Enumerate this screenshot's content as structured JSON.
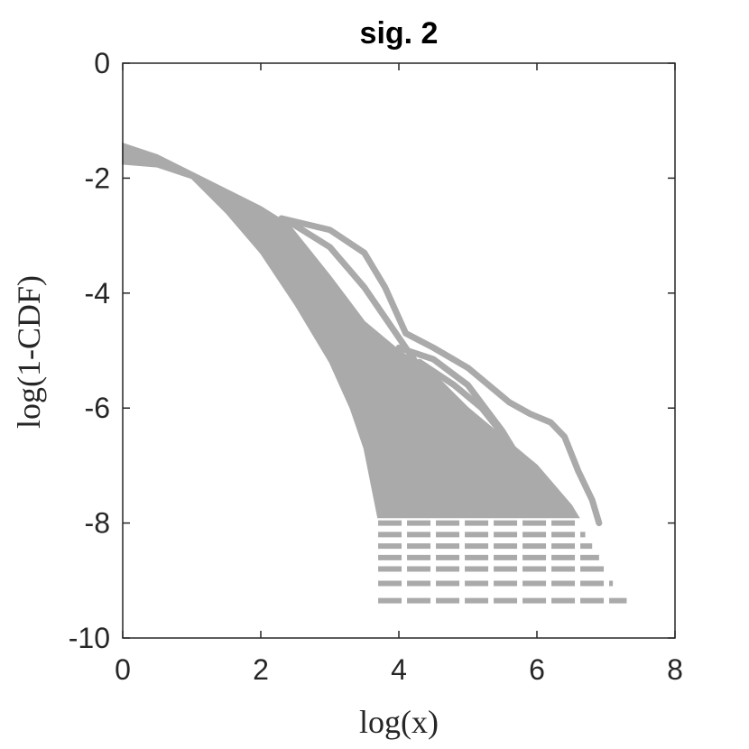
{
  "chart_data": {
    "type": "line",
    "title": "sig. 2",
    "xlabel": "log(x)",
    "ylabel": "log(1-CDF)",
    "xlim": [
      0,
      8
    ],
    "ylim": [
      -10,
      0
    ],
    "xticks": [
      0,
      2,
      4,
      6,
      8
    ],
    "yticks": [
      0,
      -2,
      -4,
      -6,
      -8,
      -10
    ],
    "xtick_labels": [
      "0",
      "2",
      "4",
      "6",
      "8"
    ],
    "ytick_labels": [
      "0",
      "-2",
      "-4",
      "-6",
      "-8",
      "-10"
    ],
    "grid": false,
    "box": true,
    "series_color": "#aaaaaa",
    "band": {
      "upper": [
        [
          0,
          -1.4
        ],
        [
          0.5,
          -1.6
        ],
        [
          1,
          -1.9
        ],
        [
          1.5,
          -2.2
        ],
        [
          2,
          -2.5
        ],
        [
          2.4,
          -2.8
        ],
        [
          3,
          -3.7
        ],
        [
          3.5,
          -4.5
        ],
        [
          4,
          -5.0
        ],
        [
          4.5,
          -5.4
        ],
        [
          5,
          -6.0
        ],
        [
          5.5,
          -6.5
        ],
        [
          6,
          -7.0
        ],
        [
          6.5,
          -7.7
        ],
        [
          6.6,
          -7.9
        ]
      ],
      "lower": [
        [
          0,
          -1.75
        ],
        [
          0.5,
          -1.8
        ],
        [
          1,
          -2.0
        ],
        [
          1.5,
          -2.6
        ],
        [
          2,
          -3.3
        ],
        [
          2.5,
          -4.2
        ],
        [
          3,
          -5.2
        ],
        [
          3.3,
          -6.0
        ],
        [
          3.5,
          -6.7
        ],
        [
          3.7,
          -7.9
        ]
      ]
    },
    "series": [
      {
        "values": [
          [
            2.4,
            -2.75
          ],
          [
            3.0,
            -3.2
          ],
          [
            3.5,
            -3.9
          ],
          [
            3.9,
            -4.6
          ],
          [
            4.3,
            -5.3
          ],
          [
            4.7,
            -5.9
          ],
          [
            5.0,
            -6.3
          ]
        ]
      },
      {
        "values": [
          [
            2.3,
            -2.7
          ],
          [
            3.0,
            -2.9
          ],
          [
            3.5,
            -3.3
          ],
          [
            3.8,
            -3.9
          ],
          [
            4.1,
            -4.7
          ],
          [
            4.5,
            -4.95
          ],
          [
            5.0,
            -5.3
          ],
          [
            5.3,
            -5.6
          ],
          [
            5.6,
            -5.9
          ],
          [
            5.9,
            -6.1
          ],
          [
            6.2,
            -6.25
          ],
          [
            6.4,
            -6.5
          ],
          [
            6.6,
            -7.1
          ],
          [
            6.8,
            -7.6
          ],
          [
            6.9,
            -8.0
          ]
        ]
      },
      {
        "values": [
          [
            4.0,
            -4.95
          ],
          [
            4.5,
            -5.15
          ],
          [
            5.0,
            -5.6
          ],
          [
            5.5,
            -6.4
          ],
          [
            5.8,
            -7.0
          ],
          [
            6.1,
            -7.6
          ]
        ]
      },
      {
        "values": [
          [
            4.3,
            -5.2
          ],
          [
            4.8,
            -5.6
          ],
          [
            5.2,
            -6.0
          ],
          [
            5.6,
            -6.6
          ],
          [
            6.0,
            -7.4
          ]
        ]
      },
      {
        "values": [
          [
            3.9,
            -5.0
          ],
          [
            4.4,
            -5.5
          ],
          [
            4.9,
            -6.2
          ],
          [
            5.3,
            -6.9
          ],
          [
            5.6,
            -7.4
          ]
        ]
      }
    ],
    "floor_levels": [
      {
        "y": -8.0,
        "x0": 3.7,
        "x1": 6.6
      },
      {
        "y": -8.2,
        "x0": 3.7,
        "x1": 6.7
      },
      {
        "y": -8.4,
        "x0": 3.7,
        "x1": 6.8
      },
      {
        "y": -8.6,
        "x0": 3.7,
        "x1": 6.9
      },
      {
        "y": -8.8,
        "x0": 3.7,
        "x1": 7.0
      },
      {
        "y": -9.05,
        "x0": 3.7,
        "x1": 7.1
      },
      {
        "y": -9.35,
        "x0": 3.7,
        "x1": 7.3
      }
    ]
  }
}
